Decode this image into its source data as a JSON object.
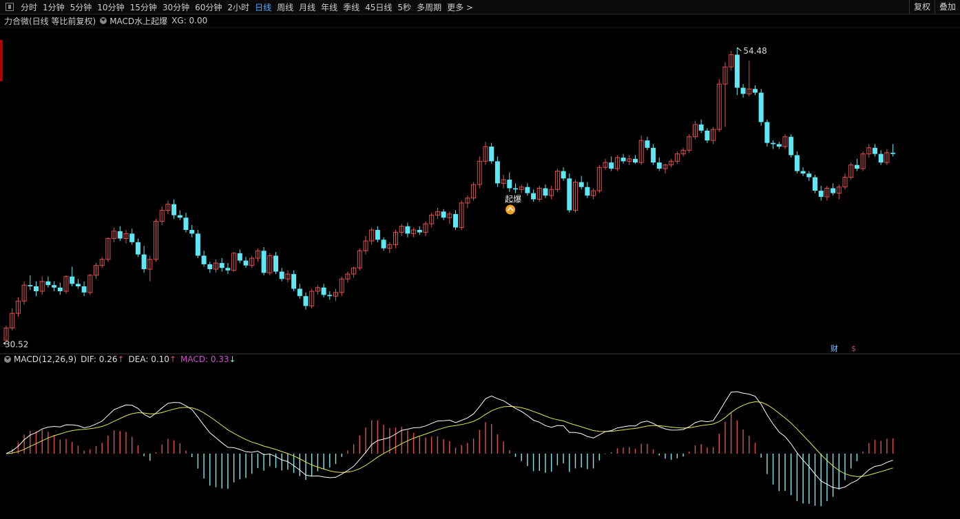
{
  "toolbar": {
    "periods": [
      "分时",
      "1分钟",
      "5分钟",
      "10分钟",
      "15分钟",
      "30分钟",
      "60分钟",
      "2小时",
      "日线",
      "周线",
      "月线",
      "年线",
      "季线",
      "45日线",
      "5秒",
      "多周期",
      "更多 >"
    ],
    "active": "日线",
    "right_buttons": [
      "复权",
      "叠加"
    ]
  },
  "info": {
    "stock": "力合微(日线 等比前复权)",
    "indicator": "MACD水上起爆",
    "xg": "XG: 0.00"
  },
  "chart_data": [
    {
      "type": "candlestick",
      "annotations": {
        "high_label": "54.48",
        "low_label": "30.52",
        "signal_label": "起爆",
        "badges": [
          "财",
          "$"
        ]
      },
      "candles_ohlc": [
        [
          30.6,
          31.8,
          30.52,
          31.6
        ],
        [
          31.6,
          33.2,
          31.4,
          32.8
        ],
        [
          32.8,
          34.1,
          32.5,
          33.8
        ],
        [
          33.8,
          35.4,
          33.5,
          35.1
        ],
        [
          35.1,
          35.9,
          34.7,
          35.0
        ],
        [
          35.0,
          35.4,
          34.2,
          34.6
        ],
        [
          34.6,
          35.8,
          34.3,
          35.4
        ],
        [
          35.4,
          35.8,
          34.9,
          35.1
        ],
        [
          35.1,
          35.4,
          34.6,
          34.9
        ],
        [
          34.9,
          35.3,
          34.3,
          34.6
        ],
        [
          34.6,
          35.9,
          34.4,
          35.8
        ],
        [
          35.8,
          36.6,
          35.0,
          35.2
        ],
        [
          35.2,
          35.6,
          34.8,
          35.0
        ],
        [
          35.0,
          35.4,
          34.2,
          34.5
        ],
        [
          34.5,
          36.0,
          34.3,
          35.9
        ],
        [
          35.9,
          36.9,
          35.6,
          36.7
        ],
        [
          36.7,
          37.4,
          36.5,
          37.2
        ],
        [
          37.2,
          39.0,
          37.0,
          38.9
        ],
        [
          38.9,
          39.8,
          38.6,
          39.5
        ],
        [
          39.5,
          39.9,
          38.7,
          38.9
        ],
        [
          38.9,
          39.6,
          38.5,
          39.3
        ],
        [
          39.3,
          39.7,
          38.4,
          38.6
        ],
        [
          38.6,
          38.9,
          37.4,
          37.6
        ],
        [
          37.6,
          38.3,
          36.1,
          36.4
        ],
        [
          36.4,
          37.5,
          35.4,
          37.2
        ],
        [
          37.2,
          40.5,
          37.0,
          40.3
        ],
        [
          40.3,
          41.5,
          40.0,
          41.2
        ],
        [
          41.2,
          42.0,
          40.9,
          41.7
        ],
        [
          41.7,
          42.1,
          40.5,
          40.8
        ],
        [
          40.8,
          41.2,
          40.4,
          40.6
        ],
        [
          40.6,
          41.0,
          39.4,
          39.6
        ],
        [
          39.6,
          40.0,
          39.0,
          39.3
        ],
        [
          39.3,
          39.6,
          37.3,
          37.5
        ],
        [
          37.5,
          37.9,
          36.6,
          36.8
        ],
        [
          36.8,
          37.0,
          36.1,
          36.4
        ],
        [
          36.4,
          37.2,
          36.1,
          36.9
        ],
        [
          36.9,
          37.3,
          36.2,
          36.5
        ],
        [
          36.5,
          36.9,
          36.0,
          36.3
        ],
        [
          36.3,
          37.8,
          36.2,
          37.7
        ],
        [
          37.7,
          38.0,
          36.9,
          37.1
        ],
        [
          37.1,
          37.4,
          36.5,
          36.7
        ],
        [
          36.7,
          37.5,
          36.5,
          37.3
        ],
        [
          37.3,
          38.1,
          37.0,
          37.9
        ],
        [
          37.9,
          38.2,
          35.9,
          36.1
        ],
        [
          36.1,
          37.7,
          35.9,
          37.5
        ],
        [
          37.5,
          37.8,
          36.0,
          36.2
        ],
        [
          36.2,
          36.5,
          35.4,
          35.6
        ],
        [
          35.6,
          36.3,
          35.3,
          36.0
        ],
        [
          36.0,
          36.3,
          34.6,
          34.8
        ],
        [
          34.8,
          35.2,
          34.0,
          34.2
        ],
        [
          34.2,
          34.5,
          33.1,
          33.4
        ],
        [
          33.4,
          34.8,
          33.2,
          34.6
        ],
        [
          34.6,
          35.1,
          34.3,
          34.9
        ],
        [
          34.9,
          35.2,
          34.1,
          34.3
        ],
        [
          34.3,
          34.6,
          33.9,
          34.2
        ],
        [
          34.2,
          34.8,
          33.8,
          34.5
        ],
        [
          34.5,
          35.8,
          34.2,
          35.6
        ],
        [
          35.6,
          36.2,
          35.3,
          36.0
        ],
        [
          36.0,
          36.6,
          35.7,
          36.5
        ],
        [
          36.5,
          38.1,
          36.3,
          37.9
        ],
        [
          37.9,
          39.1,
          37.6,
          38.7
        ],
        [
          38.7,
          39.8,
          38.4,
          39.6
        ],
        [
          39.6,
          39.9,
          38.6,
          38.8
        ],
        [
          38.8,
          39.0,
          37.9,
          38.1
        ],
        [
          38.1,
          38.6,
          37.7,
          38.4
        ],
        [
          38.4,
          39.6,
          38.1,
          39.4
        ],
        [
          39.4,
          40.1,
          39.1,
          39.9
        ],
        [
          39.9,
          40.2,
          39.0,
          39.3
        ],
        [
          39.3,
          39.8,
          39.0,
          39.6
        ],
        [
          39.6,
          39.9,
          39.2,
          39.4
        ],
        [
          39.4,
          40.3,
          39.1,
          40.1
        ],
        [
          40.1,
          41.0,
          39.8,
          40.8
        ],
        [
          40.8,
          41.4,
          40.5,
          41.1
        ],
        [
          41.1,
          41.3,
          40.4,
          40.6
        ],
        [
          40.6,
          41.1,
          40.1,
          40.9
        ],
        [
          40.9,
          41.2,
          39.6,
          39.8
        ],
        [
          39.8,
          42.0,
          39.6,
          41.8
        ],
        [
          41.8,
          42.4,
          41.4,
          42.2
        ],
        [
          42.2,
          43.5,
          42.0,
          43.3
        ],
        [
          43.3,
          45.6,
          43.0,
          45.2
        ],
        [
          45.2,
          46.8,
          44.9,
          46.4
        ],
        [
          46.4,
          46.7,
          45.0,
          45.2
        ],
        [
          45.2,
          45.6,
          43.1,
          43.4
        ],
        [
          43.4,
          44.1,
          43.0,
          43.7
        ],
        [
          43.7,
          44.3,
          42.7,
          43.0
        ],
        [
          43.0,
          43.4,
          42.6,
          42.9
        ],
        [
          42.9,
          43.3,
          42.6,
          43.1
        ],
        [
          43.1,
          43.4,
          42.4,
          42.6
        ],
        [
          42.6,
          42.9,
          41.9,
          42.1
        ],
        [
          42.1,
          43.2,
          41.9,
          43.0
        ],
        [
          43.0,
          43.3,
          42.2,
          42.4
        ],
        [
          42.4,
          43.2,
          42.1,
          42.9
        ],
        [
          42.9,
          44.6,
          42.7,
          44.4
        ],
        [
          44.4,
          44.7,
          43.6,
          43.8
        ],
        [
          43.8,
          44.2,
          41.0,
          41.2
        ],
        [
          41.2,
          43.7,
          41.0,
          43.5
        ],
        [
          43.5,
          44.0,
          42.9,
          43.1
        ],
        [
          43.1,
          43.5,
          42.2,
          42.4
        ],
        [
          42.4,
          43.0,
          42.1,
          42.8
        ],
        [
          42.8,
          44.9,
          42.6,
          44.7
        ],
        [
          44.7,
          45.4,
          44.5,
          45.1
        ],
        [
          45.1,
          45.6,
          44.4,
          44.6
        ],
        [
          44.6,
          45.7,
          44.4,
          45.5
        ],
        [
          45.5,
          45.8,
          45.0,
          45.2
        ],
        [
          45.2,
          45.7,
          44.9,
          45.4
        ],
        [
          45.4,
          45.7,
          45.0,
          45.1
        ],
        [
          45.1,
          47.3,
          44.9,
          46.9
        ],
        [
          46.9,
          47.2,
          46.1,
          46.3
        ],
        [
          46.3,
          46.6,
          44.9,
          45.1
        ],
        [
          45.1,
          45.5,
          44.4,
          44.6
        ],
        [
          44.6,
          45.0,
          44.2,
          44.9
        ],
        [
          44.9,
          45.4,
          44.7,
          45.2
        ],
        [
          45.2,
          46.0,
          45.0,
          45.8
        ],
        [
          45.8,
          46.3,
          45.6,
          46.1
        ],
        [
          46.1,
          47.4,
          45.9,
          47.2
        ],
        [
          47.2,
          48.5,
          47.0,
          48.2
        ],
        [
          48.2,
          48.6,
          47.5,
          47.7
        ],
        [
          47.7,
          47.9,
          46.7,
          46.9
        ],
        [
          46.9,
          48.0,
          46.6,
          47.8
        ],
        [
          47.8,
          51.9,
          47.6,
          51.5
        ],
        [
          51.5,
          53.3,
          48.0,
          52.9
        ],
        [
          52.9,
          54.2,
          52.6,
          53.9
        ],
        [
          53.9,
          54.48,
          50.6,
          51.2
        ],
        [
          51.2,
          51.5,
          50.4,
          50.7
        ],
        [
          50.7,
          53.4,
          50.5,
          51.1
        ],
        [
          51.1,
          51.4,
          50.6,
          50.8
        ],
        [
          50.8,
          51.1,
          48.1,
          48.4
        ],
        [
          48.4,
          48.6,
          46.4,
          46.7
        ],
        [
          46.7,
          46.9,
          46.2,
          46.6
        ],
        [
          46.6,
          46.8,
          46.2,
          46.4
        ],
        [
          46.4,
          47.4,
          46.2,
          47.2
        ],
        [
          47.2,
          47.4,
          45.5,
          45.7
        ],
        [
          45.7,
          46.0,
          44.2,
          44.4
        ],
        [
          44.4,
          44.7,
          44.0,
          44.2
        ],
        [
          44.2,
          44.4,
          43.6,
          43.9
        ],
        [
          43.9,
          44.1,
          42.6,
          42.8
        ],
        [
          42.8,
          43.2,
          42.0,
          42.3
        ],
        [
          42.3,
          43.2,
          42.0,
          43.0
        ],
        [
          43.0,
          43.4,
          42.4,
          42.6
        ],
        [
          42.6,
          43.3,
          42.1,
          43.1
        ],
        [
          43.1,
          44.2,
          42.9,
          43.9
        ],
        [
          43.9,
          45.1,
          43.7,
          44.9
        ],
        [
          44.9,
          45.4,
          44.4,
          44.6
        ],
        [
          44.6,
          46.0,
          44.4,
          45.8
        ],
        [
          45.8,
          46.6,
          45.5,
          46.3
        ],
        [
          46.3,
          46.6,
          45.6,
          45.8
        ],
        [
          45.8,
          46.1,
          44.9,
          45.1
        ],
        [
          45.1,
          46.2,
          44.9,
          45.9
        ],
        [
          45.9,
          46.6,
          45.6,
          45.8
        ]
      ],
      "ylim": [
        30.0,
        56.0
      ]
    },
    {
      "type": "macd",
      "params": "MACD(12,26,9)",
      "dif_label": "DIF: 0.26",
      "dea_label": "DEA: 0.10",
      "macd_label": "MACD: 0.33",
      "colors": {
        "dif": "#ffffff",
        "dea": "#e6e64a",
        "pos": "#e05050",
        "neg": "#7fe8f0",
        "macd_text": "#d050d0"
      }
    }
  ]
}
